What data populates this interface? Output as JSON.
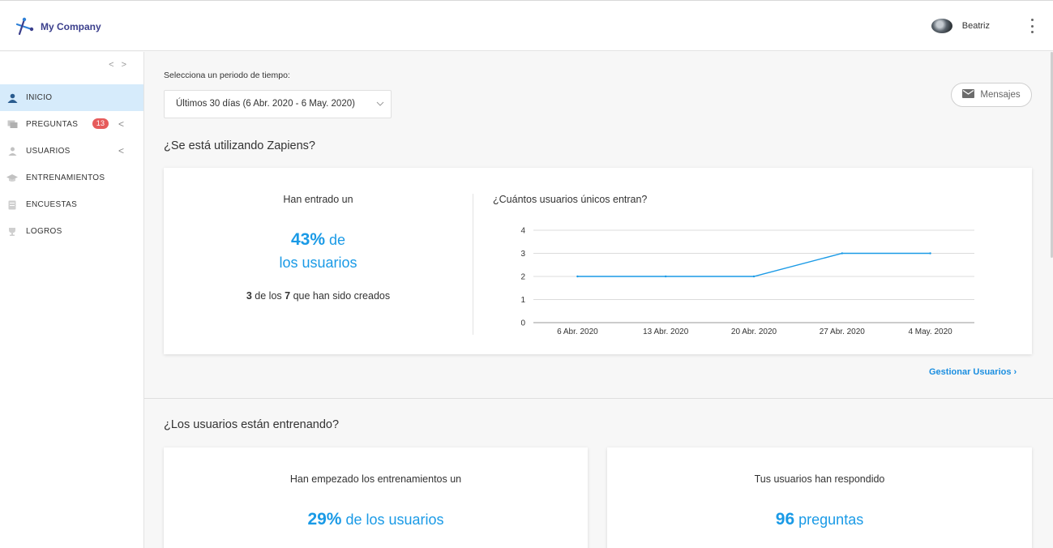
{
  "header": {
    "brand": "My Company",
    "user_name": "Beatriz"
  },
  "sidebar": {
    "collapse_label": "< >",
    "items": [
      {
        "label": "INICIO",
        "icon": "home-user-icon",
        "active": true
      },
      {
        "label": "PREGUNTAS",
        "icon": "chat-icon",
        "badge": "13",
        "chevron": "<"
      },
      {
        "label": "USUARIOS",
        "icon": "user-icon",
        "chevron": "<"
      },
      {
        "label": "ENTRENAMIENTOS",
        "icon": "graduation-cap-icon"
      },
      {
        "label": "ENCUESTAS",
        "icon": "survey-icon"
      },
      {
        "label": "LOGROS",
        "icon": "trophy-icon"
      }
    ]
  },
  "filters": {
    "period_label": "Selecciona un periodo de tiempo:",
    "period_value": "Últimos 30 días (6 Abr. 2020 - 6 May. 2020)"
  },
  "messages_button": "Mensajes",
  "usage": {
    "title": "¿Se está utilizando Zapiens?",
    "caption": "Han entrado un",
    "percent": "43%",
    "percent_suffix": " de",
    "percent_line2": "los usuarios",
    "count_active": "3",
    "count_mid": " de los ",
    "count_total": "7",
    "count_suffix": " que han sido creados",
    "chart_title": "¿Cuántos usuarios únicos entran?",
    "manage_link": "Gestionar Usuarios",
    "manage_chevron": "›"
  },
  "training": {
    "title": "¿Los usuarios están entrenando?",
    "started_caption": "Han empezado los entrenamientos un",
    "started_percent": "29%",
    "started_suffix": " de los usuarios",
    "answered_caption": "Tus usuarios han respondido",
    "answered_count": "96",
    "answered_suffix": " preguntas"
  },
  "colors": {
    "accent": "#1a9ae6",
    "active_nav": "#d6ebfb",
    "badge": "#e65b5b",
    "brand": "#3b3f8c"
  },
  "chart_data": {
    "type": "line",
    "title": "¿Cuántos usuarios únicos entran?",
    "xlabel": "",
    "ylabel": "",
    "x": [
      "6 Abr. 2020",
      "13 Abr. 2020",
      "20 Abr. 2020",
      "27 Abr. 2020",
      "4 May. 2020"
    ],
    "series": [
      {
        "values": [
          2,
          2,
          2,
          3,
          3
        ]
      }
    ],
    "yticks": [
      0,
      1,
      2,
      3,
      4
    ],
    "ylim": [
      0,
      4
    ],
    "grid": true,
    "color": "#1a9ae6"
  }
}
